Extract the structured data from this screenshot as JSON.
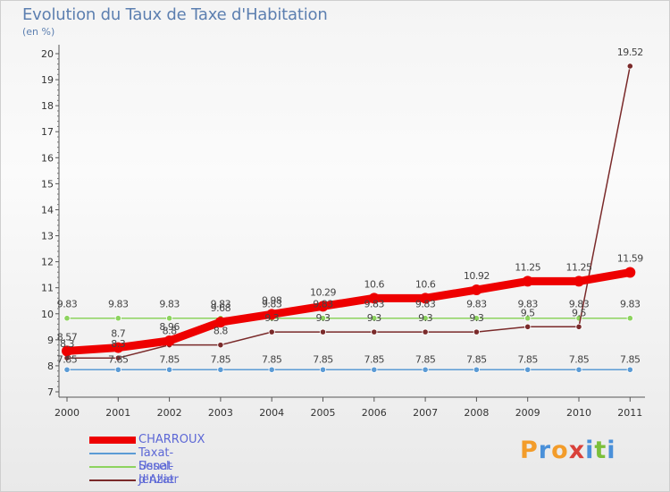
{
  "title": "Evolution du Taux de Taxe d'Habitation",
  "subtitle": "(en %)",
  "logo": {
    "letters": [
      "P",
      "r",
      "o",
      "x",
      "i",
      "t",
      "i"
    ],
    "colors": [
      "#f39c2a",
      "#4a90d9",
      "#f39c2a",
      "#d9413a",
      "#4a90d9",
      "#7bbf3a",
      "#4a90d9"
    ]
  },
  "chart_data": {
    "type": "line",
    "title": "Evolution du Taux de Taxe d'Habitation",
    "ylabel": "(en %)",
    "xlabel": "",
    "x": [
      "2000",
      "2001",
      "2002",
      "2003",
      "2004",
      "2005",
      "2006",
      "2007",
      "2008",
      "2009",
      "2010",
      "2011"
    ],
    "ylim": [
      7,
      20
    ],
    "yticks": [
      "7",
      "8",
      "9",
      "10",
      "11",
      "12",
      "13",
      "14",
      "15",
      "16",
      "17",
      "18",
      "19",
      "20"
    ],
    "grid": false,
    "legend_position": "bottom-left",
    "series": [
      {
        "name": "CHARROUX",
        "color": "#ee0000",
        "values": [
          8.57,
          8.7,
          8.96,
          9.68,
          9.98,
          10.29,
          10.6,
          10.6,
          10.92,
          11.25,
          11.25,
          11.59
        ],
        "labels": [
          "8.57",
          "8.7",
          "8.96",
          "9.68",
          "9.98",
          "10.29",
          "10.6",
          "10.6",
          "10.92",
          "11.25",
          "11.25",
          "11.59"
        ]
      },
      {
        "name": "Taxat-Senat",
        "color": "#5b9bd5",
        "values": [
          7.85,
          7.85,
          7.85,
          7.85,
          7.85,
          7.85,
          7.85,
          7.85,
          7.85,
          7.85,
          7.85,
          7.85
        ],
        "labels": [
          "7.85",
          "7.85",
          "7.85",
          "7.85",
          "7.85",
          "7.85",
          "7.85",
          "7.85",
          "7.85",
          "7.85",
          "7.85",
          "7.85"
        ]
      },
      {
        "name": "Ussel-d'Allier",
        "color": "#8dd35f",
        "values": [
          9.83,
          9.83,
          9.83,
          9.83,
          9.83,
          9.83,
          9.83,
          9.83,
          9.83,
          9.83,
          9.83,
          9.83
        ],
        "labels": [
          "9.83",
          "9.83",
          "9.83",
          "9.83",
          "9.83",
          "9.83",
          "9.83",
          "9.83",
          "9.83",
          "9.83",
          "9.83",
          "9.83"
        ]
      },
      {
        "name": "Jenzat",
        "color": "#7a2a2a",
        "values": [
          8.3,
          8.3,
          8.8,
          8.8,
          9.3,
          9.3,
          9.3,
          9.3,
          9.3,
          9.5,
          9.5,
          19.52
        ],
        "labels": [
          "8.3",
          "8.3",
          "8.8",
          "8.8",
          "9.3",
          "9.3",
          "9.3",
          "9.3",
          "9.3",
          "9.5",
          "9.5",
          "19.52"
        ]
      }
    ]
  }
}
